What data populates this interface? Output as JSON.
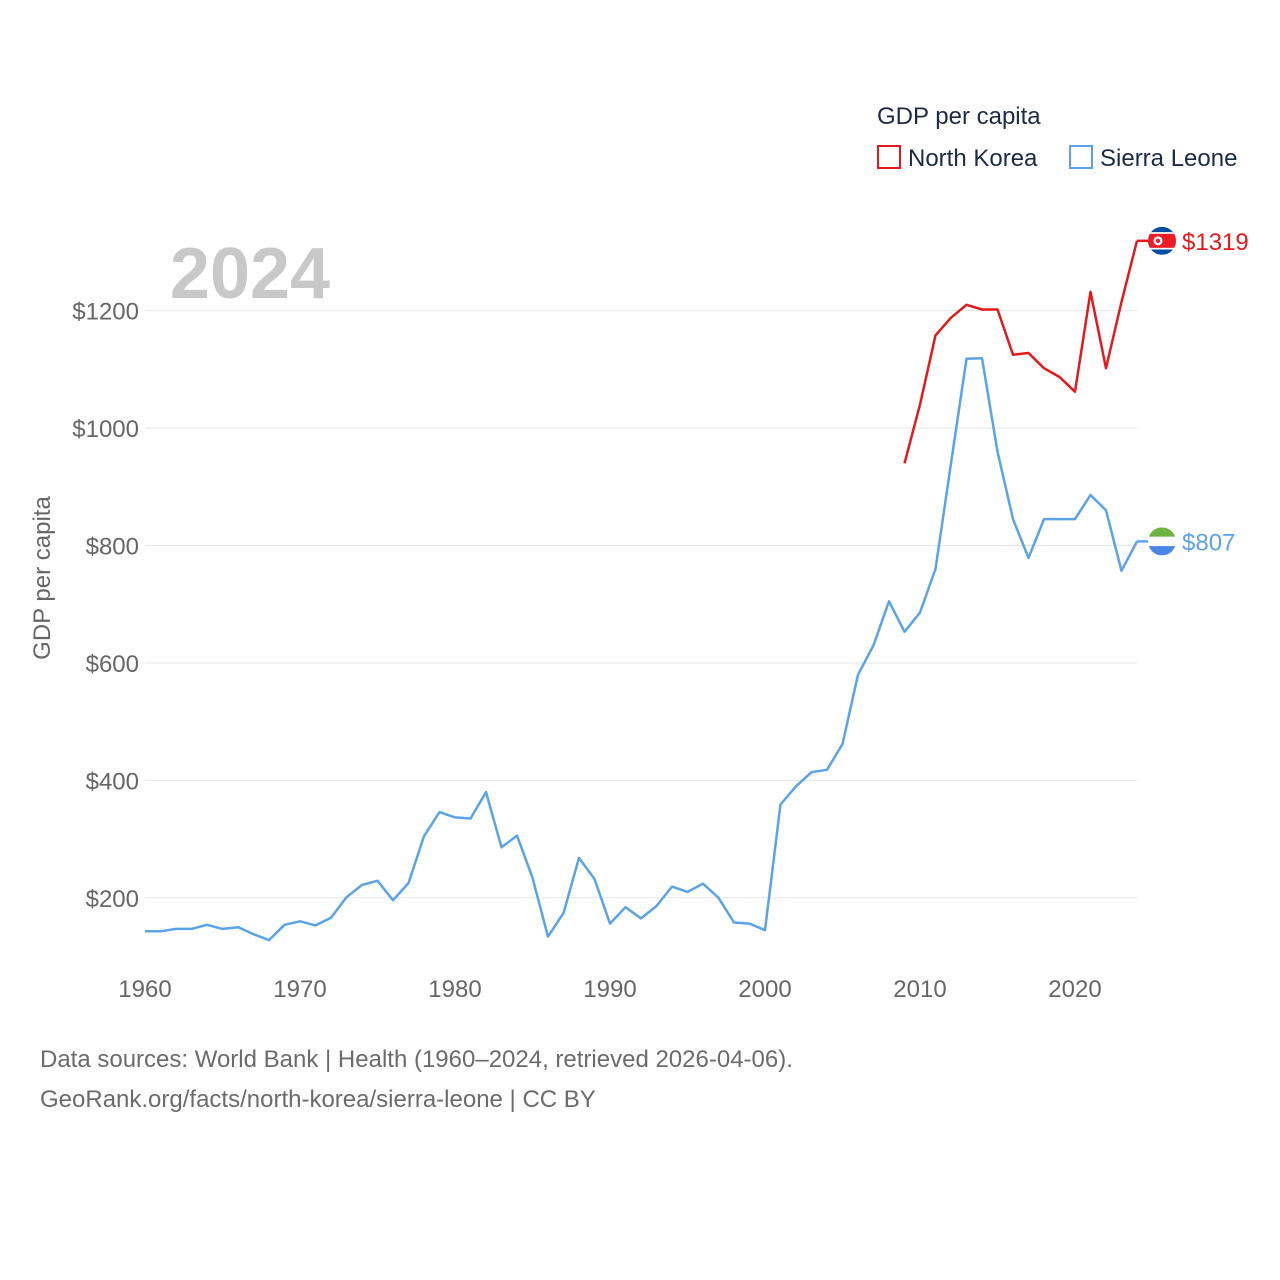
{
  "chart_data": {
    "type": "line",
    "title": "GDP per capita",
    "ylabel": "GDP per capita",
    "xlabel": "",
    "year_label": "2024",
    "xlim": [
      1960,
      2024
    ],
    "ylim": [
      60,
      1380
    ],
    "x_ticks": [
      1960,
      1970,
      1980,
      1990,
      2000,
      2010,
      2020
    ],
    "y_ticks": [
      200,
      400,
      600,
      800,
      1000,
      1200
    ],
    "y_tick_labels": [
      "$200",
      "$400",
      "$600",
      "$800",
      "$1000",
      "$1200"
    ],
    "grid": true,
    "legend_position": "top-right",
    "series": [
      {
        "name": "North Korea",
        "color": "#e31a1c",
        "end_label": "$1319",
        "end_flag": "north-korea-flag-icon",
        "x": [
          2009,
          2010,
          2011,
          2012,
          2013,
          2014,
          2015,
          2016,
          2017,
          2018,
          2019,
          2020,
          2021,
          2022,
          2023,
          2024
        ],
        "values": [
          940,
          1040,
          1158,
          1188,
          1210,
          1202,
          1202,
          1125,
          1128,
          1102,
          1087,
          1062,
          1232,
          1102,
          1215,
          1319
        ]
      },
      {
        "name": "Sierra Leone",
        "color": "#5ba3e6",
        "end_label": "$807",
        "end_flag": "sierra-leone-flag-icon",
        "x": [
          1960,
          1961,
          1962,
          1963,
          1964,
          1965,
          1966,
          1967,
          1968,
          1969,
          1970,
          1971,
          1972,
          1973,
          1974,
          1975,
          1976,
          1977,
          1978,
          1979,
          1980,
          1981,
          1982,
          1983,
          1984,
          1985,
          1986,
          1987,
          1988,
          1989,
          1990,
          1991,
          1992,
          1993,
          1994,
          1995,
          1996,
          1997,
          1998,
          1999,
          2000,
          2001,
          2002,
          2003,
          2004,
          2005,
          2006,
          2007,
          2008,
          2009,
          2010,
          2011,
          2012,
          2013,
          2014,
          2015,
          2016,
          2017,
          2018,
          2019,
          2020,
          2021,
          2022,
          2023,
          2024
        ],
        "values": [
          143,
          143,
          147,
          147,
          154,
          147,
          150,
          138,
          128,
          154,
          160,
          153,
          166,
          201,
          222,
          229,
          196,
          225,
          305,
          346,
          337,
          335,
          380,
          286,
          306,
          234,
          134,
          174,
          268,
          232,
          156,
          184,
          165,
          186,
          219,
          210,
          224,
          200,
          158,
          156,
          145,
          359,
          390,
          414,
          418,
          462,
          580,
          630,
          705,
          653,
          686,
          760,
          940,
          1118,
          1119,
          960,
          845,
          779,
          845,
          845,
          845,
          886,
          860,
          757,
          807
        ]
      }
    ]
  },
  "footer": {
    "line1": "Data sources: World Bank | Health (1960–2024, retrieved 2026-04-06).",
    "line2": "GeoRank.org/facts/north-korea/sierra-leone | CC BY"
  }
}
